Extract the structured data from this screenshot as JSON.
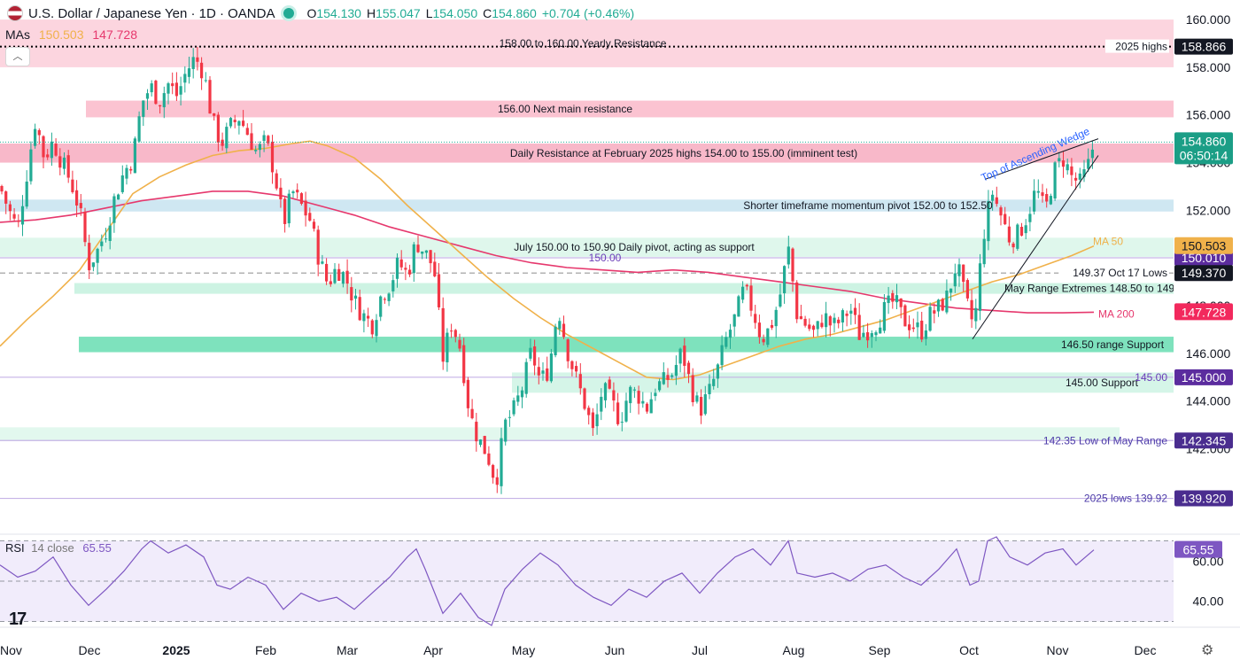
{
  "header": {
    "title": "U.S. Dollar / Japanese Yen · 1D · OANDA",
    "open_label": "O",
    "open": "154.130",
    "high_label": "H",
    "high": "155.047",
    "low_label": "L",
    "low": "154.050",
    "close_label": "C",
    "close": "154.860",
    "change": "+0.704 (+0.46%)"
  },
  "mas_legend": {
    "label": "MAs",
    "ma50": "150.503",
    "ma200": "147.728"
  },
  "rsi_legend": {
    "label": "RSI",
    "params": "14 close",
    "value": "65.55"
  },
  "colors": {
    "up": "#22ab94",
    "down": "#f23645",
    "ma50": "#f0b14a",
    "ma200": "#e6386d",
    "rsi": "#7e57c2"
  },
  "chart_data": {
    "type": "candlestick",
    "price_axis": {
      "ylim": [
        138.9,
        160.3
      ],
      "ticks": [
        "160.000",
        "158.000",
        "156.000",
        "154.000",
        "152.000",
        "150.000",
        "148.000",
        "146.000",
        "144.000",
        "142.000"
      ]
    },
    "time_axis": [
      "Nov",
      "Dec",
      "2025",
      "Feb",
      "Mar",
      "Apr",
      "May",
      "Jun",
      "Jul",
      "Aug",
      "Sep",
      "Oct",
      "Nov",
      "Dec"
    ],
    "zones": [
      {
        "label": "158.00 to 160.00 Yearly Resistance",
        "from": 158.0,
        "to": 160.0
      },
      {
        "label": "156.00 Next main resistance",
        "from": 155.9,
        "to": 156.6
      },
      {
        "label": "Daily Resistance at February 2025 highs 154.00 to 155.00 (imminent test)",
        "from": 154.0,
        "to": 154.8
      },
      {
        "label": "Shorter timeframe momentum pivot 152.00 to 152.50",
        "from": 151.95,
        "to": 152.45
      },
      {
        "label": "July 150.00 to 150.90 Daily pivot, acting as support",
        "from": 150.05,
        "to": 150.85
      },
      {
        "label": "May Range Extremes 148.50 to 149",
        "from": 148.5,
        "to": 148.95
      },
      {
        "label": "146.50 range Support",
        "from": 146.05,
        "to": 146.7
      },
      {
        "label": "145.00 Support",
        "from": 144.35,
        "to": 145.2
      },
      {
        "label": "",
        "from": 142.35,
        "to": 142.9
      }
    ],
    "levels": [
      {
        "label": "2025 highs",
        "value": 158.866,
        "badge": "158.866",
        "style": "dotted"
      },
      {
        "label": "150.00",
        "value": 150.01,
        "badge": "150.010",
        "style": "solid"
      },
      {
        "label": "149.37 Oct 17 Lows",
        "value": 149.37,
        "badge": "149.370",
        "style": "dashed"
      },
      {
        "label": "145.00",
        "value": 145.0,
        "badge": "145.000",
        "style": "solid"
      },
      {
        "label": "142.35 Low of May Range",
        "value": 142.345,
        "badge": "142.345",
        "style": "solid"
      },
      {
        "label": "2025 lows 139.92",
        "value": 139.92,
        "badge": "139.920",
        "style": "solid"
      }
    ],
    "price_badges": {
      "last": "154.860",
      "countdown": "06:50:14",
      "ma50": "150.503",
      "ma200": "147.728"
    },
    "ma_labels": {
      "ma50": "MA 50",
      "ma200": "MA 200"
    },
    "annotations": {
      "wedge": "Top of Ascending Wedge"
    },
    "close_path": [
      [
        0,
        153.0
      ],
      [
        10,
        152.0
      ],
      [
        20,
        151.2
      ],
      [
        30,
        153.5
      ],
      [
        40,
        155.8
      ],
      [
        50,
        154.2
      ],
      [
        60,
        154.9
      ],
      [
        70,
        154.0
      ],
      [
        80,
        153.2
      ],
      [
        90,
        152.0
      ],
      [
        100,
        149.7
      ],
      [
        110,
        150.3
      ],
      [
        120,
        151.2
      ],
      [
        130,
        152.6
      ],
      [
        140,
        153.6
      ],
      [
        150,
        154.2
      ],
      [
        160,
        156.5
      ],
      [
        170,
        157.2
      ],
      [
        180,
        156.6
      ],
      [
        190,
        157.3
      ],
      [
        200,
        156.8
      ],
      [
        210,
        157.8
      ],
      [
        220,
        158.4
      ],
      [
        230,
        157.8
      ],
      [
        240,
        155.7
      ],
      [
        250,
        154.8
      ],
      [
        260,
        155.5
      ],
      [
        270,
        155.9
      ],
      [
        280,
        155.2
      ],
      [
        290,
        154.4
      ],
      [
        300,
        154.9
      ],
      [
        310,
        153.6
      ],
      [
        320,
        151.4
      ],
      [
        330,
        152.8
      ],
      [
        340,
        152.2
      ],
      [
        350,
        151.6
      ],
      [
        360,
        150.0
      ],
      [
        370,
        148.9
      ],
      [
        380,
        149.6
      ],
      [
        390,
        149.2
      ],
      [
        400,
        148.2
      ],
      [
        410,
        147.6
      ],
      [
        420,
        147.2
      ],
      [
        430,
        148.4
      ],
      [
        440,
        148.9
      ],
      [
        450,
        149.8
      ],
      [
        460,
        149.3
      ],
      [
        470,
        150.7
      ],
      [
        480,
        150.2
      ],
      [
        490,
        149.6
      ],
      [
        500,
        145.8
      ],
      [
        510,
        147.3
      ],
      [
        520,
        146.2
      ],
      [
        530,
        143.5
      ],
      [
        540,
        142.4
      ],
      [
        550,
        141.8
      ],
      [
        560,
        140.6
      ],
      [
        570,
        143.0
      ],
      [
        580,
        143.6
      ],
      [
        590,
        144.6
      ],
      [
        600,
        146.1
      ],
      [
        610,
        144.8
      ],
      [
        620,
        145.4
      ],
      [
        630,
        148.0
      ],
      [
        640,
        146.2
      ],
      [
        650,
        145.0
      ],
      [
        660,
        143.9
      ],
      [
        670,
        142.6
      ],
      [
        680,
        144.5
      ],
      [
        690,
        144.0
      ],
      [
        700,
        143.2
      ],
      [
        710,
        144.4
      ],
      [
        720,
        144.3
      ],
      [
        730,
        143.7
      ],
      [
        740,
        144.6
      ],
      [
        750,
        144.8
      ],
      [
        760,
        145.2
      ],
      [
        770,
        146.1
      ],
      [
        780,
        144.6
      ],
      [
        790,
        143.6
      ],
      [
        800,
        144.3
      ],
      [
        810,
        145.3
      ],
      [
        820,
        146.6
      ],
      [
        830,
        147.5
      ],
      [
        840,
        148.7
      ],
      [
        850,
        147.8
      ],
      [
        860,
        146.6
      ],
      [
        870,
        147.1
      ],
      [
        880,
        148.3
      ],
      [
        890,
        150.4
      ],
      [
        900,
        147.6
      ],
      [
        910,
        147.2
      ],
      [
        920,
        146.8
      ],
      [
        930,
        147.6
      ],
      [
        940,
        147.1
      ],
      [
        950,
        147.4
      ],
      [
        960,
        147.9
      ],
      [
        970,
        146.8
      ],
      [
        980,
        147.0
      ],
      [
        990,
        147.3
      ],
      [
        1000,
        147.9
      ],
      [
        1010,
        148.2
      ],
      [
        1020,
        147.4
      ],
      [
        1030,
        147.2
      ],
      [
        1040,
        146.9
      ],
      [
        1050,
        147.6
      ],
      [
        1060,
        147.9
      ],
      [
        1070,
        148.4
      ],
      [
        1080,
        149.8
      ],
      [
        1090,
        148.2
      ],
      [
        1100,
        147.1
      ],
      [
        1110,
        150.9
      ],
      [
        1120,
        152.8
      ],
      [
        1130,
        151.8
      ],
      [
        1140,
        150.8
      ],
      [
        1150,
        151.0
      ],
      [
        1160,
        151.8
      ],
      [
        1170,
        152.9
      ],
      [
        1180,
        151.9
      ],
      [
        1190,
        153.6
      ],
      [
        1200,
        154.2
      ],
      [
        1210,
        153.4
      ],
      [
        1220,
        153.1
      ],
      [
        1230,
        154.0
      ],
      [
        1235,
        154.86
      ]
    ],
    "ma50_path": [
      [
        0,
        146.3
      ],
      [
        30,
        147.4
      ],
      [
        60,
        148.4
      ],
      [
        90,
        149.5
      ],
      [
        120,
        151.1
      ],
      [
        150,
        152.7
      ],
      [
        180,
        153.4
      ],
      [
        210,
        153.9
      ],
      [
        240,
        154.3
      ],
      [
        270,
        154.5
      ],
      [
        300,
        154.6
      ],
      [
        330,
        154.8
      ],
      [
        350,
        154.9
      ],
      [
        370,
        154.7
      ],
      [
        400,
        154.2
      ],
      [
        430,
        153.3
      ],
      [
        460,
        152.2
      ],
      [
        490,
        151.2
      ],
      [
        520,
        150.2
      ],
      [
        550,
        149.2
      ],
      [
        580,
        148.3
      ],
      [
        610,
        147.5
      ],
      [
        640,
        146.8
      ],
      [
        670,
        146.2
      ],
      [
        700,
        145.6
      ],
      [
        730,
        145.0
      ],
      [
        760,
        144.9
      ],
      [
        790,
        145.1
      ],
      [
        820,
        145.5
      ],
      [
        850,
        145.9
      ],
      [
        880,
        146.3
      ],
      [
        910,
        146.6
      ],
      [
        940,
        146.8
      ],
      [
        970,
        147.1
      ],
      [
        1000,
        147.4
      ],
      [
        1030,
        147.8
      ],
      [
        1060,
        148.2
      ],
      [
        1090,
        148.6
      ],
      [
        1120,
        149.0
      ],
      [
        1150,
        149.3
      ],
      [
        1180,
        149.7
      ],
      [
        1210,
        150.1
      ],
      [
        1235,
        150.503
      ]
    ],
    "ma200_path": [
      [
        0,
        151.5
      ],
      [
        40,
        151.6
      ],
      [
        80,
        151.8
      ],
      [
        120,
        152.1
      ],
      [
        160,
        152.4
      ],
      [
        200,
        152.6
      ],
      [
        240,
        152.8
      ],
      [
        280,
        152.8
      ],
      [
        320,
        152.6
      ],
      [
        360,
        152.2
      ],
      [
        400,
        151.8
      ],
      [
        440,
        151.3
      ],
      [
        480,
        150.9
      ],
      [
        520,
        150.5
      ],
      [
        560,
        150.1
      ],
      [
        600,
        149.8
      ],
      [
        640,
        149.6
      ],
      [
        680,
        149.5
      ],
      [
        720,
        149.4
      ],
      [
        760,
        149.5
      ],
      [
        800,
        149.4
      ],
      [
        840,
        149.2
      ],
      [
        880,
        149.0
      ],
      [
        920,
        148.8
      ],
      [
        960,
        148.6
      ],
      [
        1000,
        148.3
      ],
      [
        1040,
        148.1
      ],
      [
        1080,
        147.9
      ],
      [
        1120,
        147.8
      ],
      [
        1160,
        147.7
      ],
      [
        1200,
        147.7
      ],
      [
        1235,
        147.728
      ]
    ],
    "rsi": {
      "ylim": [
        28,
        72
      ],
      "ticks": [
        "60.00",
        "40.00"
      ],
      "guides": [
        70,
        50,
        30
      ],
      "path": [
        [
          0,
          58
        ],
        [
          20,
          52
        ],
        [
          40,
          55
        ],
        [
          60,
          62
        ],
        [
          80,
          48
        ],
        [
          100,
          38
        ],
        [
          120,
          46
        ],
        [
          140,
          55
        ],
        [
          160,
          66
        ],
        [
          170,
          70
        ],
        [
          190,
          64
        ],
        [
          210,
          68
        ],
        [
          230,
          62
        ],
        [
          245,
          48
        ],
        [
          260,
          46
        ],
        [
          280,
          52
        ],
        [
          300,
          48
        ],
        [
          320,
          36
        ],
        [
          340,
          44
        ],
        [
          360,
          40
        ],
        [
          380,
          42
        ],
        [
          400,
          36
        ],
        [
          420,
          44
        ],
        [
          440,
          52
        ],
        [
          460,
          62
        ],
        [
          470,
          66
        ],
        [
          480,
          56
        ],
        [
          500,
          34
        ],
        [
          520,
          44
        ],
        [
          540,
          32
        ],
        [
          555,
          28
        ],
        [
          570,
          46
        ],
        [
          590,
          56
        ],
        [
          610,
          64
        ],
        [
          630,
          58
        ],
        [
          650,
          48
        ],
        [
          670,
          42
        ],
        [
          690,
          38
        ],
        [
          710,
          46
        ],
        [
          730,
          42
        ],
        [
          750,
          50
        ],
        [
          770,
          54
        ],
        [
          790,
          44
        ],
        [
          810,
          54
        ],
        [
          830,
          62
        ],
        [
          850,
          66
        ],
        [
          870,
          58
        ],
        [
          890,
          70
        ],
        [
          900,
          54
        ],
        [
          920,
          52
        ],
        [
          940,
          54
        ],
        [
          960,
          50
        ],
        [
          980,
          56
        ],
        [
          1000,
          58
        ],
        [
          1020,
          52
        ],
        [
          1040,
          48
        ],
        [
          1060,
          56
        ],
        [
          1080,
          66
        ],
        [
          1095,
          48
        ],
        [
          1105,
          50
        ],
        [
          1115,
          70
        ],
        [
          1125,
          72
        ],
        [
          1140,
          62
        ],
        [
          1160,
          58
        ],
        [
          1180,
          64
        ],
        [
          1200,
          66
        ],
        [
          1215,
          58
        ],
        [
          1235,
          65.55
        ]
      ]
    }
  }
}
